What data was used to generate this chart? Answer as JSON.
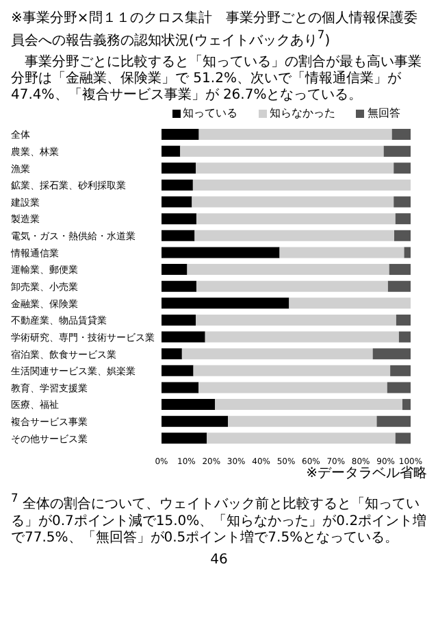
{
  "chart_data": {
    "type": "bar",
    "orientation": "horizontal",
    "stacked": true,
    "title": "※事業分野×問１１のクロス集計　事業分野ごとの個人情報保護委員会への報告義務の認知状況(ウェイトバックあり$^{7}$)",
    "subtitle": "事業分野ごとに比較すると「知っている」の割合が最も高い事業分野は「金融業、保険業」で 51.2%、次いで「情報通信業」が 47.4%、「複合サービス事業」が 26.7%となっている。",
    "categories": [
      "全体",
      "農業、林業",
      "漁業",
      "鉱業、採石業、砂利採取業",
      "建設業",
      "製造業",
      "電気・ガス・熱供給・水道業",
      "情報通信業",
      "運輸業、郵便業",
      "卸売業、小売業",
      "金融業、保険業",
      "不動産業、物品賃貸業",
      "学術研究、専門・技術サービス業",
      "宿泊業、飲食サービス業",
      "生活関連サービス業、娯楽業",
      "教育、学習支援業",
      "医療、福祉",
      "複合サービス事業",
      "その他サービス業"
    ],
    "series": [
      {
        "name": "知っている",
        "color": "#000000",
        "values": [
          15.0,
          7.5,
          13.8,
          12.6,
          12.2,
          14.0,
          13.3,
          47.4,
          10.3,
          14.0,
          51.2,
          13.8,
          17.5,
          8.2,
          12.8,
          14.9,
          21.5,
          26.7,
          18.2
        ]
      },
      {
        "name": "知らなかった",
        "color": "#d0d0d0",
        "values": [
          77.5,
          81.7,
          79.4,
          87.4,
          81.0,
          79.9,
          80.1,
          50.0,
          81.1,
          76.9,
          48.8,
          80.4,
          77.8,
          76.6,
          79.0,
          75.7,
          75.2,
          59.7,
          75.7
        ]
      },
      {
        "name": "無回答",
        "color": "#555555",
        "values": [
          7.5,
          10.8,
          6.8,
          0,
          6.8,
          6.1,
          6.6,
          2.6,
          8.6,
          9.1,
          0,
          5.8,
          4.7,
          15.2,
          8.2,
          9.4,
          3.3,
          13.6,
          6.1
        ]
      }
    ],
    "xlim": [
      0,
      100
    ],
    "xticks": [
      {
        "value": 0,
        "label": "0%"
      },
      {
        "value": 10,
        "label": "10%"
      },
      {
        "value": 20,
        "label": "20%"
      },
      {
        "value": 30,
        "label": "30%"
      },
      {
        "value": 40,
        "label": "40%"
      },
      {
        "value": 50,
        "label": "50%"
      },
      {
        "value": 60,
        "label": "60%"
      },
      {
        "value": 70,
        "label": "70%"
      },
      {
        "value": 80,
        "label": "80%"
      },
      {
        "value": 90,
        "label": "90%"
      },
      {
        "value": 100,
        "label": "100%"
      }
    ],
    "legend": "top",
    "annotations": [
      "※データラベル省略",
      "$^{7}$ 全体の割合について、ウェイトバック前と比較すると「知っている」が0.7ポイント減で15.0%、「知らなかった」が0.2ポイント増で77.5%、「無回答」が0.5ポイント増で7.5%となっている。",
      "46"
    ]
  }
}
